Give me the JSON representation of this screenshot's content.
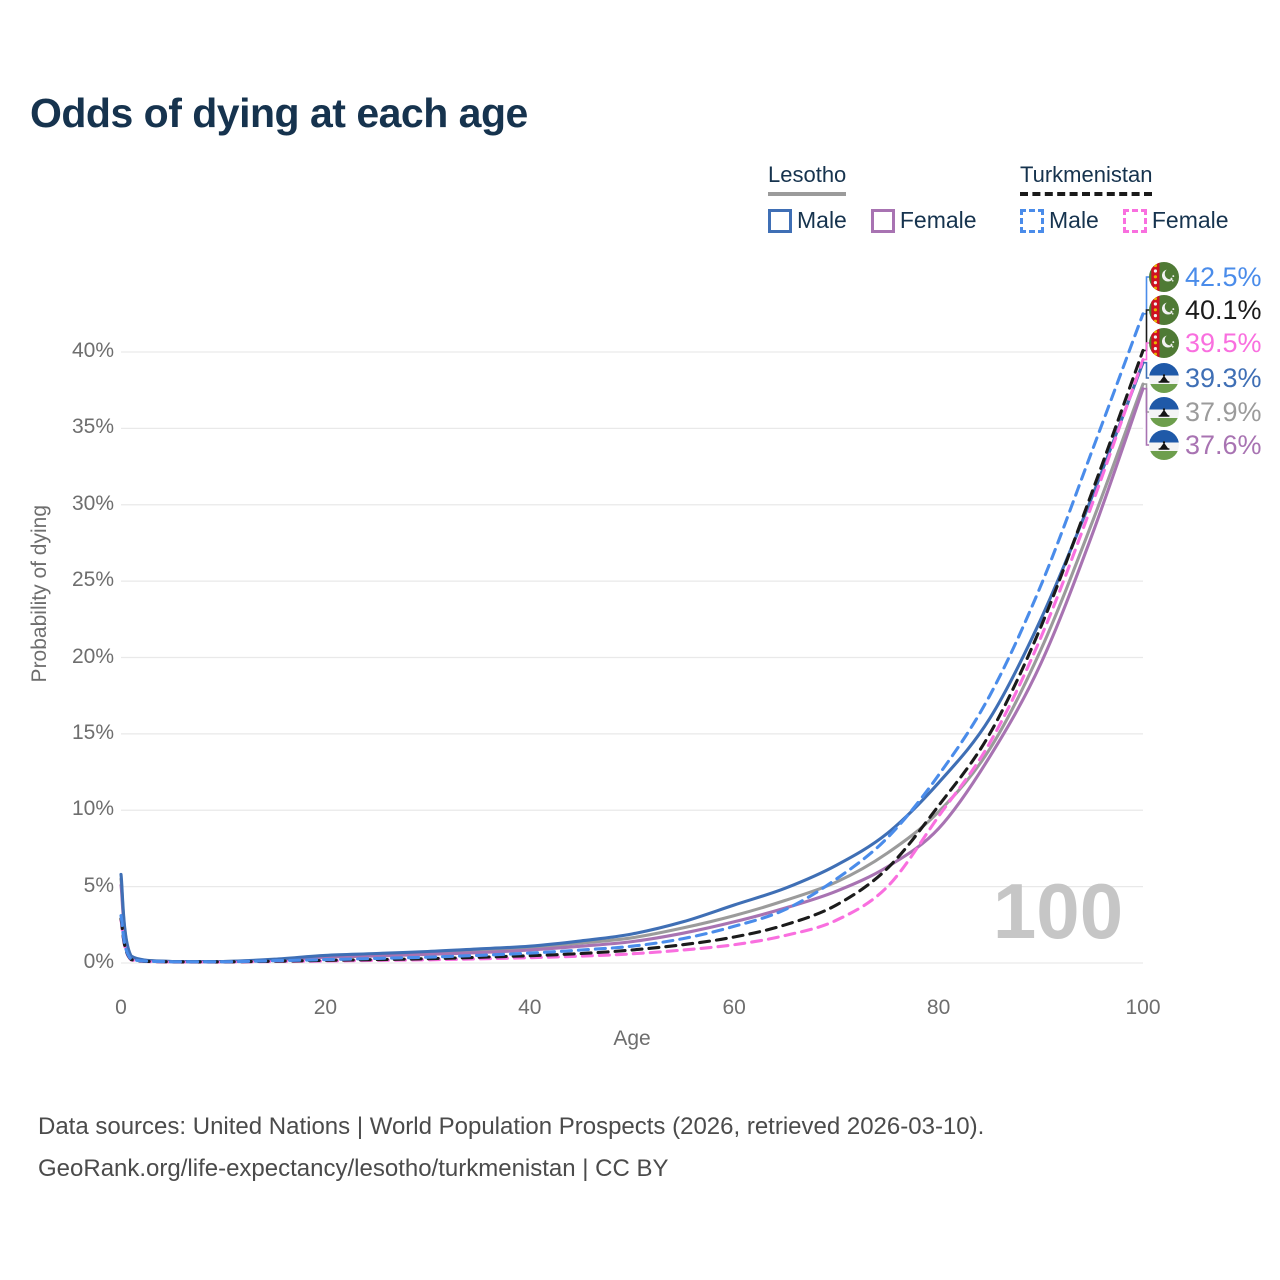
{
  "title": "Odds of dying at each age",
  "watermark": "100",
  "legend": {
    "groups": [
      {
        "id": "lesotho",
        "label": "Lesotho",
        "line_style": "solid",
        "underline_color": "#9b9b9b",
        "items": [
          {
            "label": "Male",
            "color": "#3f6fb5"
          },
          {
            "label": "Female",
            "color": "#a873b2"
          }
        ]
      },
      {
        "id": "turkmenistan",
        "label": "Turkmenistan",
        "line_style": "dashed",
        "underline_color": "#1a1a1a",
        "items": [
          {
            "label": "Male",
            "color": "#4a8cea"
          },
          {
            "label": "Female",
            "color": "#f96fdf"
          }
        ]
      }
    ]
  },
  "axes": {
    "y_title": "Probability of dying",
    "x_title": "Age",
    "y_tick_labels": [
      "0%",
      "5%",
      "10%",
      "15%",
      "20%",
      "25%",
      "30%",
      "35%",
      "40%"
    ],
    "x_tick_labels": [
      "0",
      "20",
      "40",
      "60",
      "80",
      "100"
    ]
  },
  "chart_data": {
    "type": "line",
    "title": "Odds of dying at each age",
    "xlabel": "Age",
    "ylabel": "Probability of dying",
    "xlim": [
      0,
      100
    ],
    "ylim_percent": [
      0,
      44
    ],
    "x_ticks": [
      0,
      20,
      40,
      60,
      80,
      100
    ],
    "y_ticks_percent": [
      0,
      5,
      10,
      15,
      20,
      25,
      30,
      35,
      40
    ],
    "grid": true,
    "legend_position": "top-right",
    "x": [
      0,
      1,
      5,
      10,
      15,
      20,
      25,
      30,
      35,
      40,
      45,
      50,
      55,
      60,
      65,
      70,
      75,
      80,
      85,
      90,
      95,
      100
    ],
    "series": [
      {
        "name": "Turkmenistan Male",
        "country": "Turkmenistan",
        "sex": "male",
        "color": "#4a8cea",
        "dash": "dashed",
        "end_label": "42.5%",
        "flag": "turkmenistan",
        "values_percent": [
          3.1,
          0.25,
          0.08,
          0.08,
          0.15,
          0.22,
          0.3,
          0.38,
          0.5,
          0.65,
          0.85,
          1.1,
          1.6,
          2.4,
          3.5,
          5.5,
          8.2,
          12.3,
          17.5,
          24.7,
          33.5,
          42.5
        ]
      },
      {
        "name": "Turkmenistan Both sexes",
        "country": "Turkmenistan",
        "sex": "both",
        "color": "#1b1b1b",
        "dash": "dashed",
        "end_label": "40.1%",
        "flag": "turkmenistan",
        "values_percent": [
          2.9,
          0.22,
          0.07,
          0.07,
          0.12,
          0.17,
          0.22,
          0.28,
          0.37,
          0.48,
          0.62,
          0.85,
          1.2,
          1.7,
          2.5,
          3.8,
          6.2,
          10.3,
          15.0,
          22.0,
          30.8,
          40.1
        ]
      },
      {
        "name": "Turkmenistan Female",
        "country": "Turkmenistan",
        "sex": "female",
        "color": "#f96fdf",
        "dash": "dashed",
        "end_label": "39.5%",
        "flag": "turkmenistan",
        "values_percent": [
          2.8,
          0.2,
          0.06,
          0.06,
          0.1,
          0.13,
          0.17,
          0.21,
          0.27,
          0.35,
          0.45,
          0.6,
          0.85,
          1.2,
          1.8,
          2.8,
          5.0,
          9.6,
          14.4,
          21.3,
          30.0,
          39.5
        ]
      },
      {
        "name": "Lesotho Male",
        "country": "Lesotho",
        "sex": "male",
        "color": "#3f6fb5",
        "dash": "solid",
        "end_label": "39.3%",
        "flag": "lesotho",
        "values_percent": [
          5.8,
          0.45,
          0.1,
          0.1,
          0.25,
          0.5,
          0.62,
          0.75,
          0.92,
          1.1,
          1.45,
          1.9,
          2.7,
          3.8,
          4.9,
          6.4,
          8.5,
          11.8,
          16.0,
          22.5,
          30.5,
          39.3
        ]
      },
      {
        "name": "Lesotho Both sexes",
        "country": "Lesotho",
        "sex": "both",
        "color": "#9b9b9b",
        "dash": "solid",
        "end_label": "37.9%",
        "flag": "lesotho",
        "values_percent": [
          5.5,
          0.42,
          0.09,
          0.09,
          0.22,
          0.45,
          0.55,
          0.67,
          0.8,
          1.0,
          1.3,
          1.65,
          2.3,
          3.1,
          4.1,
          5.3,
          7.2,
          9.9,
          14.0,
          20.5,
          28.8,
          37.9
        ]
      },
      {
        "name": "Lesotho Female",
        "country": "Lesotho",
        "sex": "female",
        "color": "#a873b2",
        "dash": "solid",
        "end_label": "37.6%",
        "flag": "lesotho",
        "values_percent": [
          5.1,
          0.4,
          0.08,
          0.08,
          0.18,
          0.38,
          0.46,
          0.56,
          0.68,
          0.85,
          1.1,
          1.4,
          1.95,
          2.7,
          3.6,
          4.7,
          6.3,
          8.8,
          13.5,
          19.6,
          28.0,
          37.6
        ]
      }
    ]
  },
  "footer": {
    "line1": "Data sources: United Nations | World Population Prospects (2026, retrieved 2026-03-10).",
    "line2": "GeoRank.org/life-expectancy/lesotho/turkmenistan | CC BY"
  }
}
